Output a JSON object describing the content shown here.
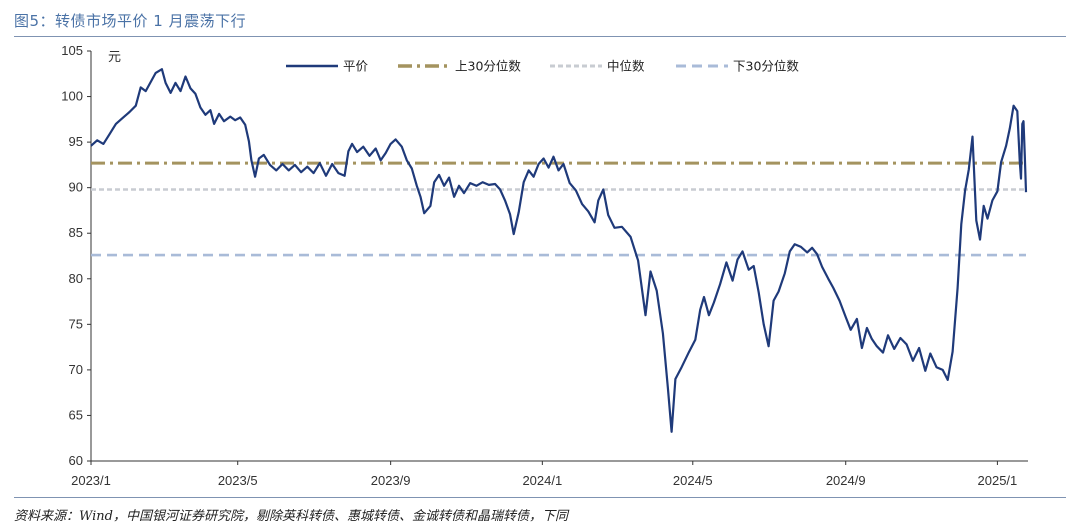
{
  "figure": {
    "title": "图5：转债市场平价 1 月震荡下行",
    "source": "资料来源：Wind，中国银河证券研究院，剔除英科转债、惠城转债、金诚转债和晶瑞转债，下同"
  },
  "chart_data": {
    "type": "line",
    "title": "转债市场平价 1 月震荡下行",
    "ylabel": "元",
    "xlabel": "",
    "ylim": [
      60,
      105
    ],
    "yticks": [
      60,
      65,
      70,
      75,
      80,
      85,
      90,
      95,
      100,
      105
    ],
    "xlim": [
      "2023-01-03",
      "2025-01-24"
    ],
    "xticks": [
      {
        "date": "2023-01-01",
        "label": "2023/1"
      },
      {
        "date": "2023-05-01",
        "label": "2023/5"
      },
      {
        "date": "2023-09-01",
        "label": "2023/9"
      },
      {
        "date": "2024-01-01",
        "label": "2024/1"
      },
      {
        "date": "2024-05-01",
        "label": "2024/5"
      },
      {
        "date": "2024-09-01",
        "label": "2024/9"
      },
      {
        "date": "2025-01-01",
        "label": "2025/1"
      }
    ],
    "grid": false,
    "legend_position": "top",
    "series": [
      {
        "name": "平价",
        "style": "solid",
        "color": "#1f3a7a",
        "points": [
          [
            "2023-01-03",
            94.6
          ],
          [
            "2023-01-08",
            95.2
          ],
          [
            "2023-01-13",
            94.8
          ],
          [
            "2023-01-18",
            95.9
          ],
          [
            "2023-01-23",
            97.0
          ],
          [
            "2023-01-28",
            97.6
          ],
          [
            "2023-02-03",
            98.3
          ],
          [
            "2023-02-08",
            99.0
          ],
          [
            "2023-02-12",
            101.0
          ],
          [
            "2023-02-16",
            100.6
          ],
          [
            "2023-02-20",
            101.6
          ],
          [
            "2023-02-24",
            102.6
          ],
          [
            "2023-03-01",
            103.0
          ],
          [
            "2023-03-04",
            101.5
          ],
          [
            "2023-03-08",
            100.4
          ],
          [
            "2023-03-12",
            101.5
          ],
          [
            "2023-03-16",
            100.6
          ],
          [
            "2023-03-20",
            102.2
          ],
          [
            "2023-03-24",
            100.9
          ],
          [
            "2023-03-28",
            100.3
          ],
          [
            "2023-04-01",
            98.8
          ],
          [
            "2023-04-05",
            98.0
          ],
          [
            "2023-04-09",
            98.5
          ],
          [
            "2023-04-12",
            97.0
          ],
          [
            "2023-04-16",
            98.1
          ],
          [
            "2023-04-20",
            97.3
          ],
          [
            "2023-04-25",
            97.8
          ],
          [
            "2023-04-29",
            97.4
          ],
          [
            "2023-05-03",
            97.7
          ],
          [
            "2023-05-07",
            96.9
          ],
          [
            "2023-05-10",
            95.1
          ],
          [
            "2023-05-12",
            93.0
          ],
          [
            "2023-05-15",
            91.2
          ],
          [
            "2023-05-18",
            93.2
          ],
          [
            "2023-05-22",
            93.6
          ],
          [
            "2023-05-27",
            92.5
          ],
          [
            "2023-06-01",
            91.9
          ],
          [
            "2023-06-06",
            92.6
          ],
          [
            "2023-06-11",
            91.9
          ],
          [
            "2023-06-16",
            92.5
          ],
          [
            "2023-06-21",
            91.7
          ],
          [
            "2023-06-26",
            92.3
          ],
          [
            "2023-07-01",
            91.6
          ],
          [
            "2023-07-06",
            92.7
          ],
          [
            "2023-07-11",
            91.3
          ],
          [
            "2023-07-16",
            92.6
          ],
          [
            "2023-07-21",
            91.6
          ],
          [
            "2023-07-26",
            91.3
          ],
          [
            "2023-07-29",
            94.0
          ],
          [
            "2023-08-01",
            94.8
          ],
          [
            "2023-08-05",
            93.9
          ],
          [
            "2023-08-10",
            94.5
          ],
          [
            "2023-08-15",
            93.5
          ],
          [
            "2023-08-20",
            94.3
          ],
          [
            "2023-08-24",
            93.0
          ],
          [
            "2023-08-28",
            93.8
          ],
          [
            "2023-09-01",
            94.8
          ],
          [
            "2023-09-05",
            95.3
          ],
          [
            "2023-09-10",
            94.5
          ],
          [
            "2023-09-14",
            93.0
          ],
          [
            "2023-09-18",
            92.1
          ],
          [
            "2023-09-22",
            90.2
          ],
          [
            "2023-09-25",
            89.0
          ],
          [
            "2023-09-28",
            87.2
          ],
          [
            "2023-10-03",
            88.0
          ],
          [
            "2023-10-06",
            90.6
          ],
          [
            "2023-10-10",
            91.4
          ],
          [
            "2023-10-14",
            90.2
          ],
          [
            "2023-10-18",
            91.1
          ],
          [
            "2023-10-22",
            89.0
          ],
          [
            "2023-10-26",
            90.2
          ],
          [
            "2023-10-30",
            89.4
          ],
          [
            "2023-11-04",
            90.5
          ],
          [
            "2023-11-09",
            90.2
          ],
          [
            "2023-11-14",
            90.6
          ],
          [
            "2023-11-19",
            90.3
          ],
          [
            "2023-11-24",
            90.4
          ],
          [
            "2023-11-28",
            89.8
          ],
          [
            "2023-12-02",
            88.6
          ],
          [
            "2023-12-06",
            87.1
          ],
          [
            "2023-12-09",
            84.9
          ],
          [
            "2023-12-13",
            87.3
          ],
          [
            "2023-12-17",
            90.6
          ],
          [
            "2023-12-21",
            91.9
          ],
          [
            "2023-12-25",
            91.2
          ],
          [
            "2023-12-29",
            92.6
          ],
          [
            "2024-01-02",
            93.2
          ],
          [
            "2024-01-06",
            92.2
          ],
          [
            "2024-01-10",
            93.4
          ],
          [
            "2024-01-14",
            91.9
          ],
          [
            "2024-01-18",
            92.6
          ],
          [
            "2024-01-23",
            90.5
          ],
          [
            "2024-01-28",
            89.7
          ],
          [
            "2024-02-02",
            88.2
          ],
          [
            "2024-02-07",
            87.4
          ],
          [
            "2024-02-12",
            86.2
          ],
          [
            "2024-02-15",
            88.6
          ],
          [
            "2024-02-19",
            89.8
          ],
          [
            "2024-02-23",
            87.0
          ],
          [
            "2024-02-28",
            85.6
          ],
          [
            "2024-03-05",
            85.7
          ],
          [
            "2024-03-12",
            84.6
          ],
          [
            "2024-03-18",
            82.0
          ],
          [
            "2024-03-24",
            76.0
          ],
          [
            "2024-03-28",
            80.8
          ],
          [
            "2024-04-02",
            78.7
          ],
          [
            "2024-04-07",
            74.0
          ],
          [
            "2024-04-11",
            68.0
          ],
          [
            "2024-04-14",
            63.2
          ],
          [
            "2024-04-17",
            69.0
          ],
          [
            "2024-04-22",
            70.3
          ],
          [
            "2024-04-28",
            72.0
          ],
          [
            "2024-05-03",
            73.3
          ],
          [
            "2024-05-07",
            76.6
          ],
          [
            "2024-05-10",
            78.0
          ],
          [
            "2024-05-14",
            76.0
          ],
          [
            "2024-05-18",
            77.4
          ],
          [
            "2024-05-23",
            79.4
          ],
          [
            "2024-05-28",
            81.8
          ],
          [
            "2024-06-02",
            79.8
          ],
          [
            "2024-06-06",
            82.1
          ],
          [
            "2024-06-10",
            83.0
          ],
          [
            "2024-06-15",
            81.0
          ],
          [
            "2024-06-19",
            81.4
          ],
          [
            "2024-06-23",
            78.5
          ],
          [
            "2024-06-27",
            75.0
          ],
          [
            "2024-07-01",
            72.6
          ],
          [
            "2024-07-05",
            77.6
          ],
          [
            "2024-07-09",
            78.6
          ],
          [
            "2024-07-14",
            80.6
          ],
          [
            "2024-07-18",
            83.0
          ],
          [
            "2024-07-22",
            83.8
          ],
          [
            "2024-07-27",
            83.5
          ],
          [
            "2024-08-01",
            82.9
          ],
          [
            "2024-08-05",
            83.4
          ],
          [
            "2024-08-09",
            82.7
          ],
          [
            "2024-08-13",
            81.3
          ],
          [
            "2024-08-18",
            80.0
          ],
          [
            "2024-08-22",
            79.0
          ],
          [
            "2024-08-27",
            77.6
          ],
          [
            "2024-09-01",
            75.8
          ],
          [
            "2024-09-05",
            74.4
          ],
          [
            "2024-09-10",
            75.6
          ],
          [
            "2024-09-14",
            72.4
          ],
          [
            "2024-09-18",
            74.6
          ],
          [
            "2024-09-22",
            73.4
          ],
          [
            "2024-09-26",
            72.6
          ],
          [
            "2024-10-01",
            71.9
          ],
          [
            "2024-10-05",
            73.8
          ],
          [
            "2024-10-10",
            72.3
          ],
          [
            "2024-10-15",
            73.5
          ],
          [
            "2024-10-20",
            72.8
          ],
          [
            "2024-10-25",
            71.0
          ],
          [
            "2024-10-30",
            72.4
          ],
          [
            "2024-11-04",
            69.9
          ],
          [
            "2024-11-08",
            71.8
          ],
          [
            "2024-11-13",
            70.3
          ],
          [
            "2024-11-18",
            70.0
          ],
          [
            "2024-11-22",
            68.9
          ],
          [
            "2024-11-26",
            72.0
          ],
          [
            "2024-11-30",
            79.0
          ],
          [
            "2024-12-03",
            86.0
          ],
          [
            "2024-12-06",
            89.7
          ],
          [
            "2024-12-09",
            92.0
          ],
          [
            "2024-12-12",
            95.6
          ],
          [
            "2024-12-15",
            86.4
          ],
          [
            "2024-12-18",
            84.3
          ],
          [
            "2024-12-21",
            88.0
          ],
          [
            "2024-12-24",
            86.6
          ],
          [
            "2024-12-28",
            88.6
          ],
          [
            "2025-01-01",
            89.6
          ],
          [
            "2025-01-04",
            92.8
          ],
          [
            "2025-01-08",
            94.6
          ],
          [
            "2025-01-11",
            96.5
          ],
          [
            "2025-01-14",
            99.0
          ],
          [
            "2025-01-17",
            98.4
          ],
          [
            "2025-01-19",
            92.8
          ],
          [
            "2025-01-20",
            91.0
          ],
          [
            "2025-01-21",
            97.0
          ],
          [
            "2025-01-22",
            97.3
          ],
          [
            "2025-01-23",
            93.5
          ],
          [
            "2025-01-24",
            89.5
          ]
        ]
      },
      {
        "name": "上30分位数",
        "style": "dashdot",
        "color": "#a4935f",
        "value": 92.7
      },
      {
        "name": "中位数",
        "style": "dotted",
        "color": "#c8ccd2",
        "value": 89.8
      },
      {
        "name": "下30分位数",
        "style": "dashed",
        "color": "#a9bbd8",
        "value": 82.6
      }
    ]
  }
}
